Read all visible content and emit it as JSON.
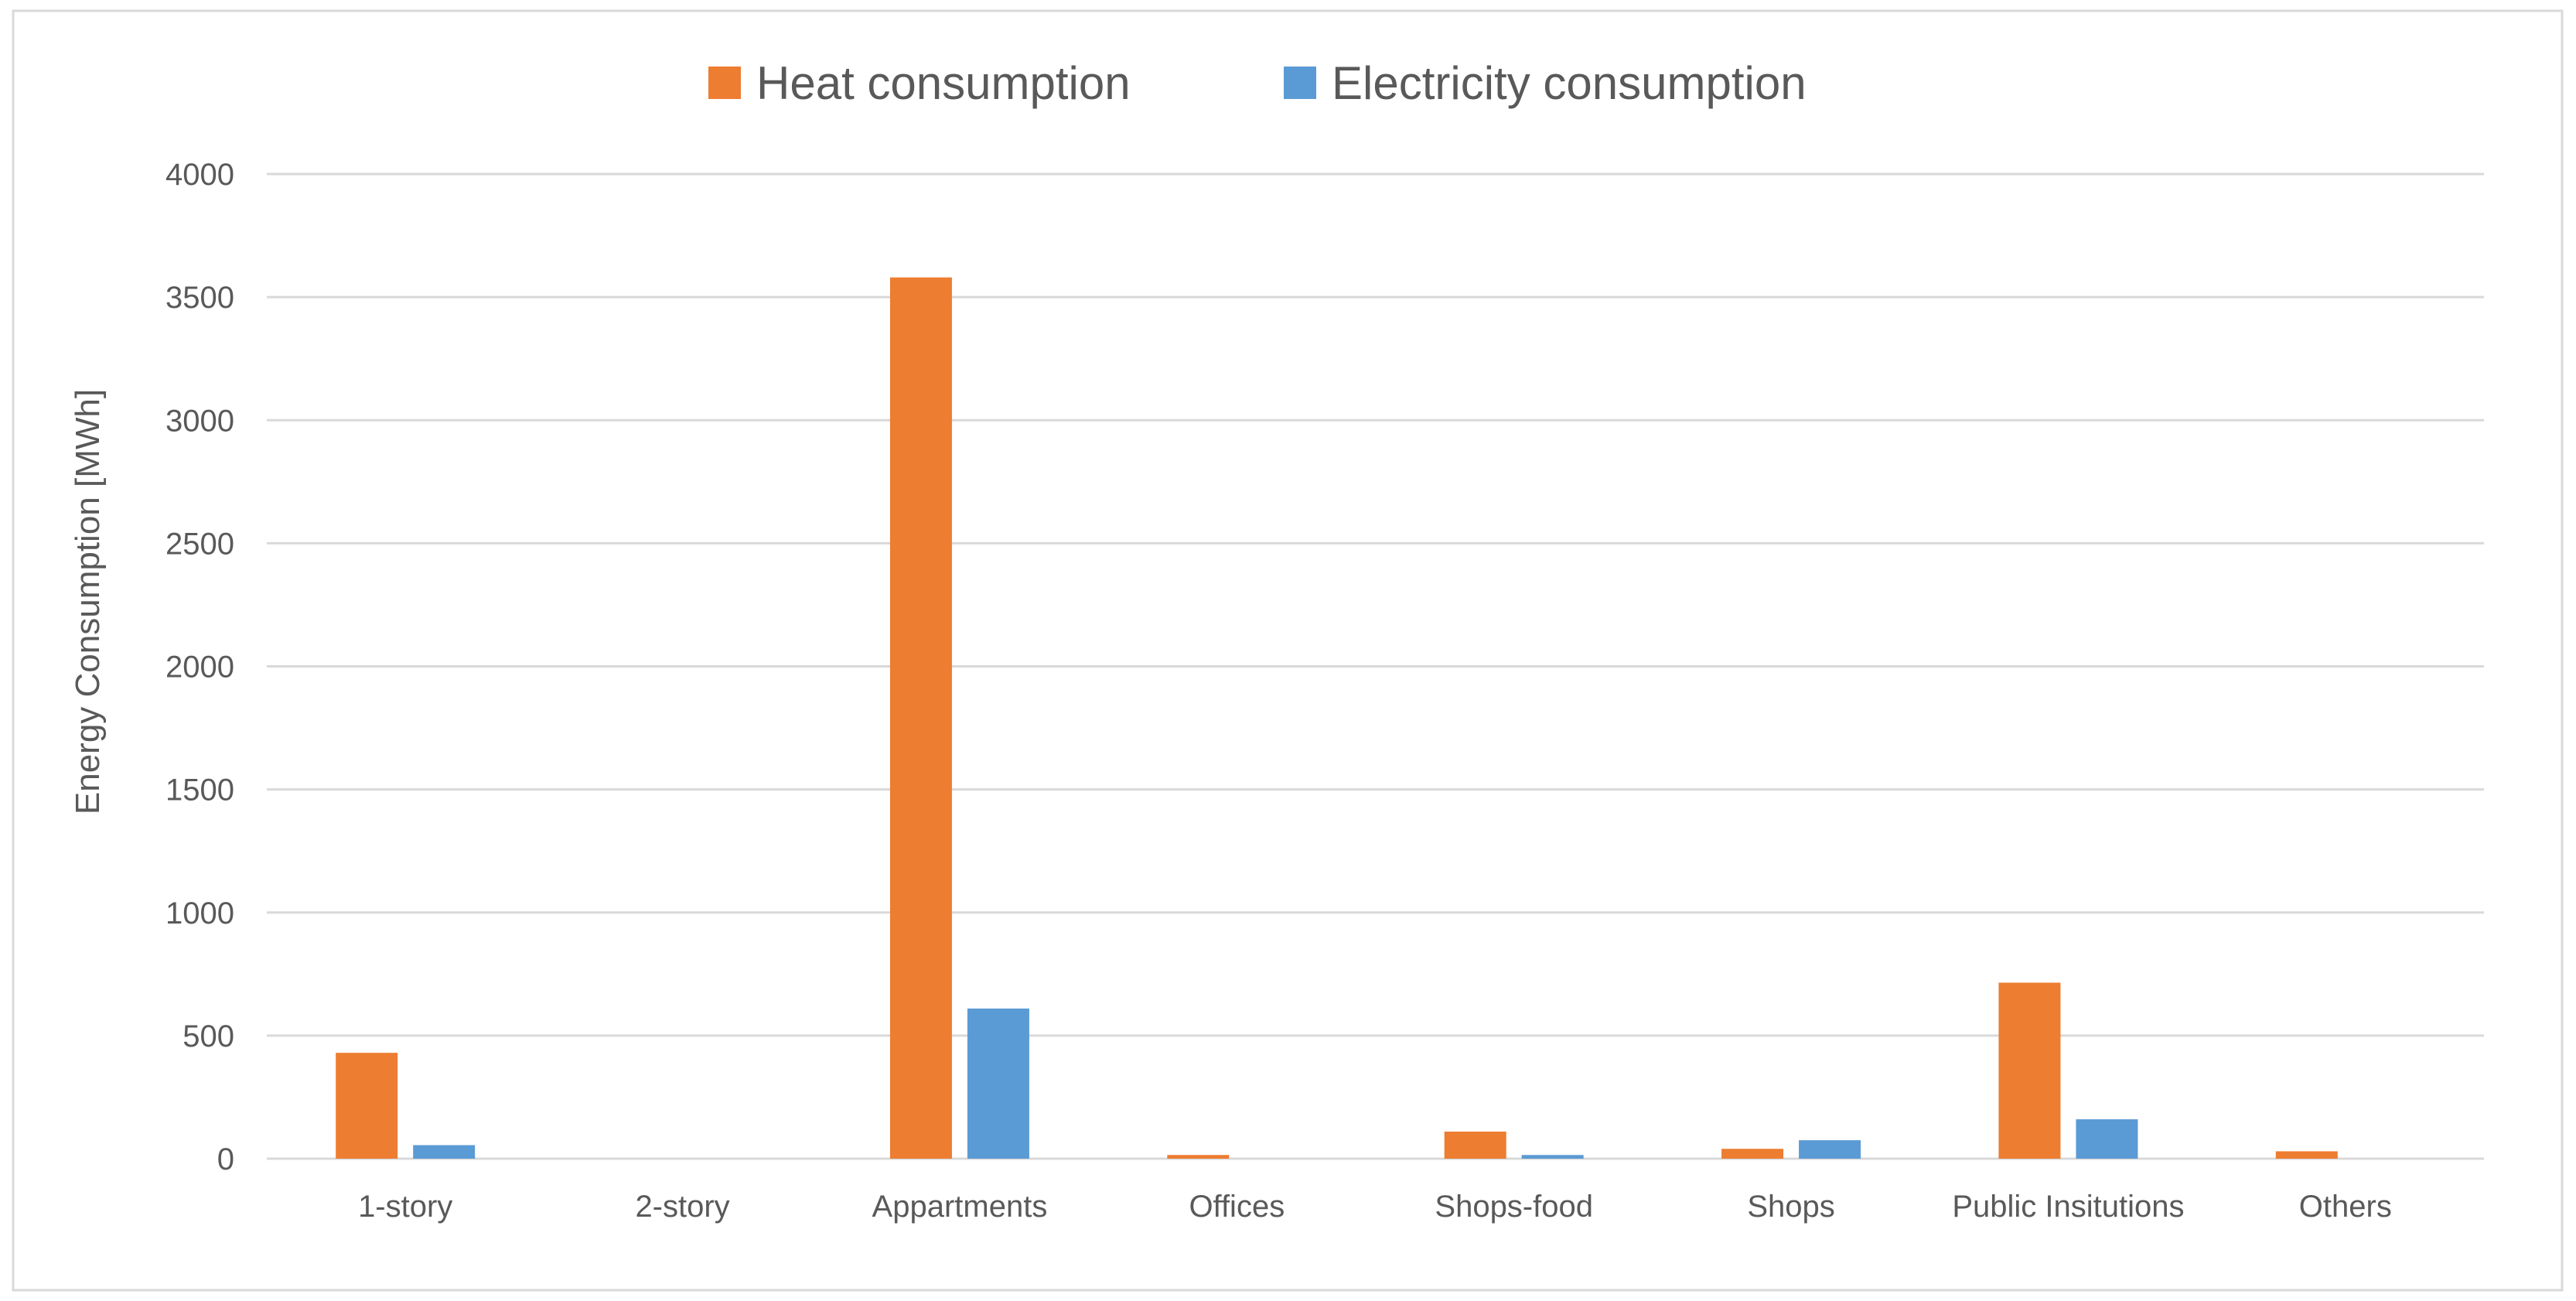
{
  "chart_data": {
    "type": "bar",
    "title": "",
    "xlabel": "",
    "ylabel": "Energy Consumption [MWh]",
    "ylim": [
      0,
      4000
    ],
    "yticks": [
      "0",
      "500",
      "1000",
      "1500",
      "2000",
      "2500",
      "3000",
      "3500",
      "4000"
    ],
    "categories": [
      "1-story",
      "2-story",
      "Appartments",
      "Offices",
      "Shops-food",
      "Shops",
      "Public Insitutions",
      "Others"
    ],
    "grid": true,
    "legend_position": "top-center",
    "series": [
      {
        "name": "Heat consumption",
        "color": "#ED7D31",
        "values": [
          430,
          0,
          3580,
          15,
          110,
          40,
          715,
          30
        ]
      },
      {
        "name": "Electricity consumption",
        "color": "#5B9BD5",
        "values": [
          55,
          0,
          610,
          0,
          15,
          75,
          160,
          0
        ]
      }
    ]
  },
  "colors": {
    "border": "#D9D9D9",
    "gridline": "#D9D9D9",
    "text": "#595959"
  }
}
